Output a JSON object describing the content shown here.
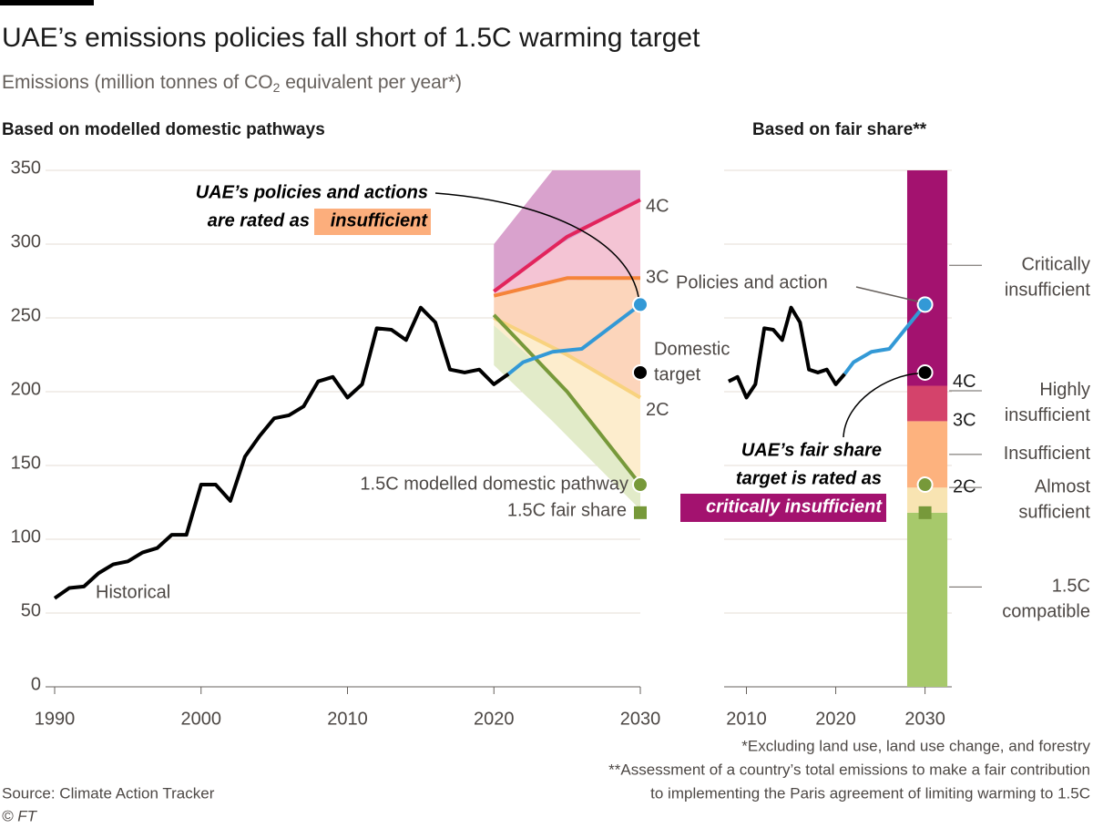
{
  "title": "UAE’s emissions policies fall short of 1.5C warming target",
  "subtitle": {
    "text": "Emissions (million tonnes of CO",
    "sub": "2",
    "tail": " equivalent per year*)"
  },
  "footnotes": [
    "*Excluding land use, land use change, and forestry",
    "**Assessment of a country’s total emissions to make a fair contribution",
    "to implementing the Paris agreement of limiting warming to 1.5C"
  ],
  "source": "Source: Climate Action Tracker",
  "credit": "© FT",
  "chart_data": [
    {
      "type": "line",
      "title": "Based on modelled domestic pathways",
      "xlim": [
        1990,
        2030
      ],
      "xticks": [
        1990,
        2000,
        2010,
        2020,
        2030
      ],
      "ylim": [
        0,
        350
      ],
      "yticks": [
        0,
        50,
        100,
        150,
        200,
        250,
        300,
        350
      ],
      "grid": true,
      "bands": {
        "x": [
          2020,
          2024,
          2030
        ],
        "edges": [
          [
            300,
            350,
            350
          ],
          [
            268,
            297,
            330
          ],
          [
            265,
            275,
            277
          ],
          [
            250,
            230,
            196
          ],
          [
            245,
            210,
            137
          ],
          [
            218,
            180,
            120
          ]
        ],
        "colors": [
          "#d9a2cd",
          "#f4c4d4",
          "#fcd5bb",
          "#fdedcd",
          "#e2ebc9"
        ]
      },
      "series": [
        {
          "name": "Historical",
          "color": "#000000",
          "x": [
            1990,
            1991,
            1992,
            1993,
            1994,
            1995,
            1996,
            1997,
            1998,
            1999,
            2000,
            2001,
            2002,
            2003,
            2004,
            2005,
            2006,
            2007,
            2008,
            2009,
            2010,
            2011,
            2012,
            2013,
            2014,
            2015,
            2016,
            2017,
            2018,
            2019,
            2020,
            2021
          ],
          "values": [
            60,
            67,
            68,
            77,
            83,
            85,
            91,
            94,
            103,
            103,
            137,
            137,
            126,
            156,
            170,
            182,
            184,
            190,
            207,
            210,
            196,
            205,
            243,
            242,
            235,
            257,
            247,
            215,
            213,
            215,
            205,
            212
          ]
        },
        {
          "name": "Policies and action",
          "color": "#3399d6",
          "x": [
            2021,
            2022,
            2024,
            2026,
            2030
          ],
          "values": [
            212,
            220,
            227,
            229,
            259
          ]
        },
        {
          "name": "4C",
          "color": "#e2245c",
          "x": [
            2020,
            2025,
            2030
          ],
          "values": [
            268,
            305,
            330
          ]
        },
        {
          "name": "3C",
          "color": "#f5843a",
          "x": [
            2020,
            2025,
            2030
          ],
          "values": [
            265,
            277,
            277
          ]
        },
        {
          "name": "2C",
          "color": "#f8d27e",
          "x": [
            2020,
            2025,
            2030
          ],
          "values": [
            250,
            225,
            196
          ]
        },
        {
          "name": "1.5C modelled domestic pathway",
          "color": "#77993a",
          "x": [
            2020,
            2025,
            2030
          ],
          "values": [
            252,
            200,
            137
          ]
        }
      ],
      "points": [
        {
          "label": [
            "Domestic",
            "target"
          ],
          "x": 2030,
          "value": 213,
          "color": "#000000"
        },
        {
          "label": [
            "1.5C fair share"
          ],
          "x": 2030,
          "value": 118,
          "color": "#77993a"
        }
      ],
      "annotation": [
        "UAE’s policies and actions",
        "are rated as",
        "insufficient"
      ]
    },
    {
      "type": "stacked-bar",
      "title": "Based on fair share**",
      "xlim": [
        2007.5,
        2033
      ],
      "xticks": [
        2010,
        2020,
        2030
      ],
      "ylim": [
        0,
        350
      ],
      "yticks": [
        0,
        50,
        100,
        150,
        200,
        250,
        300,
        350
      ],
      "grid": true,
      "bar_x": [
        2028,
        2032.5
      ],
      "segments": [
        {
          "label": [
            "1.5C",
            "compatible"
          ],
          "value": 118,
          "color": "#a7c96b"
        },
        {
          "label": [
            "Almost",
            "sufficient"
          ],
          "value": 17,
          "color": "#f8e4b2"
        },
        {
          "label": [
            "Insufficient"
          ],
          "value": 45,
          "color": "#fdb27e"
        },
        {
          "label": [
            "Highly",
            "insufficient"
          ],
          "value": 24,
          "color": "#d4436b"
        },
        {
          "label": [
            "Critically",
            "insufficient"
          ],
          "value": 146,
          "color": "#a3126f"
        }
      ],
      "boundary_labels": [
        "2C",
        "3C",
        "4C"
      ],
      "annotation": [
        "UAE’s fair share",
        "target is rated as",
        "critically insufficient"
      ]
    }
  ]
}
